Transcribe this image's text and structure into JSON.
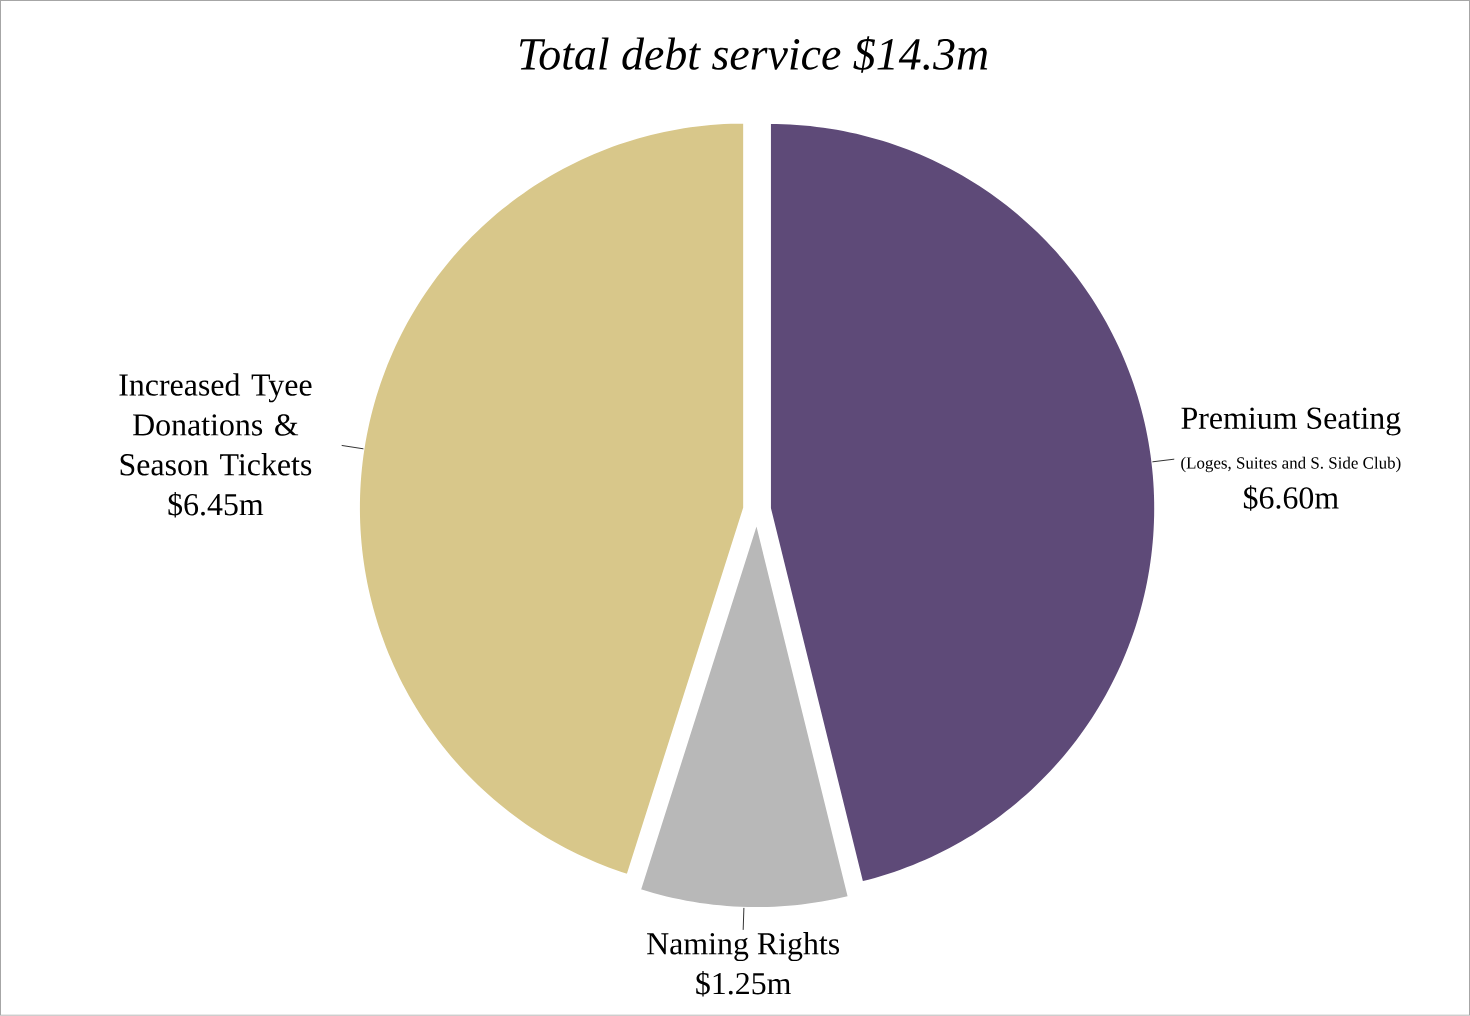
{
  "chart_data": {
    "type": "pie",
    "title": "*Total debt service $14.3m*",
    "categories": [
      "Premium Seating",
      "Naming Rights",
      "Increased Tyee Donations & Season Tickets"
    ],
    "values": [
      6.6,
      1.25,
      6.45
    ],
    "colors": [
      "#5e4a78",
      "#b8b8b8",
      "#d8c78a"
    ],
    "value_labels": [
      "$6.60m",
      "$1.25m",
      "$6.45m"
    ],
    "annotations": [
      "(Loges, Suites and S. Side Club)"
    ]
  }
}
